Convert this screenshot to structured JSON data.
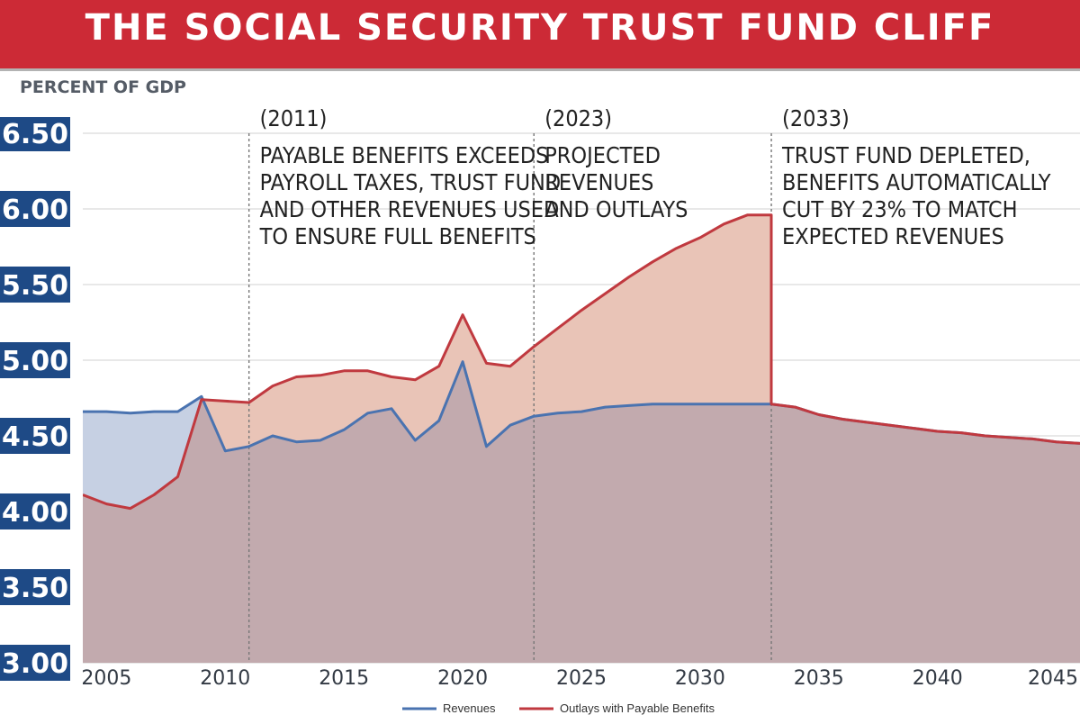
{
  "colors": {
    "title_bg": "#cc2a36",
    "revenue_line": "#4a73b0",
    "revenue_fill": "#c6d0e3",
    "outlay_line": "#c0393f",
    "outlay_fill": "#e9c4b7",
    "overlap_fill": "#c2aaae",
    "axis_box": "#1e4a86"
  },
  "chart_data": {
    "type": "area",
    "title": "THE SOCIAL SECURITY TRUST FUND CLIFF",
    "ylabel": "PERCENT OF GDP",
    "ylim": [
      3.0,
      6.5
    ],
    "xlim": [
      2004,
      2046
    ],
    "y_ticks": [
      "6.50",
      "6.00",
      "5.50",
      "5.00",
      "4.50",
      "4.00",
      "3.50",
      "3.00"
    ],
    "y_tick_values": [
      6.5,
      6.0,
      5.5,
      5.0,
      4.5,
      4.0,
      3.5,
      3.0
    ],
    "x_ticks": [
      {
        "label": "2005",
        "value": 2005
      },
      {
        "label": "2010",
        "value": 2010
      },
      {
        "label": "2015",
        "value": 2015
      },
      {
        "label": "2020",
        "value": 2020
      },
      {
        "label": "2025",
        "value": 2025
      },
      {
        "label": "2030",
        "value": 2030
      },
      {
        "label": "2035",
        "value": 2035
      },
      {
        "label": "2040",
        "value": 2040
      },
      {
        "label": "2045",
        "value": 2045
      }
    ],
    "series": [
      {
        "name": "Revenues",
        "x": [
          2004,
          2005,
          2006,
          2007,
          2008,
          2009,
          2010,
          2011,
          2012,
          2013,
          2014,
          2015,
          2016,
          2017,
          2018,
          2019,
          2020,
          2021,
          2022,
          2023,
          2024,
          2025,
          2026,
          2027,
          2028,
          2029,
          2030,
          2031,
          2032,
          2033,
          2034,
          2035,
          2036,
          2037,
          2038,
          2039,
          2040,
          2041,
          2042,
          2043,
          2044,
          2045,
          2046
        ],
        "values": [
          4.66,
          4.66,
          4.65,
          4.66,
          4.66,
          4.76,
          4.4,
          4.43,
          4.5,
          4.46,
          4.47,
          4.54,
          4.65,
          4.68,
          4.47,
          4.6,
          4.99,
          4.43,
          4.57,
          4.63,
          4.65,
          4.66,
          4.69,
          4.7,
          4.71,
          4.71,
          4.71,
          4.71,
          4.71,
          4.71,
          4.69,
          4.64,
          4.61,
          4.59,
          4.57,
          4.55,
          4.53,
          4.52,
          4.5,
          4.49,
          4.48,
          4.46,
          4.45
        ]
      },
      {
        "name": "Outlays with Payable Benefits",
        "x": [
          2004,
          2005,
          2006,
          2007,
          2008,
          2009,
          2010,
          2011,
          2012,
          2013,
          2014,
          2015,
          2016,
          2017,
          2018,
          2019,
          2020,
          2021,
          2022,
          2023,
          2024,
          2025,
          2026,
          2027,
          2028,
          2029,
          2030,
          2031,
          2032,
          2033,
          2033,
          2034,
          2035,
          2036,
          2037,
          2038,
          2039,
          2040,
          2041,
          2042,
          2043,
          2044,
          2045,
          2046
        ],
        "values": [
          4.11,
          4.05,
          4.02,
          4.11,
          4.23,
          4.74,
          4.73,
          4.72,
          4.83,
          4.89,
          4.9,
          4.93,
          4.93,
          4.89,
          4.87,
          4.96,
          5.3,
          4.98,
          4.96,
          5.09,
          5.21,
          5.33,
          5.44,
          5.55,
          5.65,
          5.74,
          5.81,
          5.9,
          5.96,
          5.96,
          4.71,
          4.69,
          4.64,
          4.61,
          4.59,
          4.57,
          4.55,
          4.53,
          4.52,
          4.5,
          4.49,
          4.48,
          4.46,
          4.45
        ]
      }
    ],
    "annotations": [
      {
        "year": 2011,
        "label": "(2011)",
        "lines": [
          "PAYABLE BENEFITS EXCEEDS",
          "PAYROLL TAXES, TRUST FUND",
          "AND OTHER REVENUES USED",
          "TO ENSURE FULL BENEFITS"
        ]
      },
      {
        "year": 2023,
        "label": "(2023)",
        "lines": [
          "PROJECTED",
          "REVENUES",
          "AND OUTLAYS"
        ]
      },
      {
        "year": 2033,
        "label": "(2033)",
        "lines": [
          "TRUST FUND DEPLETED,",
          "BENEFITS AUTOMATICALLY",
          "CUT BY 23% TO MATCH",
          "EXPECTED REVENUES"
        ]
      }
    ],
    "legend": [
      "Revenues",
      "Outlays with Payable Benefits"
    ],
    "legend_position": "bottom-center"
  }
}
